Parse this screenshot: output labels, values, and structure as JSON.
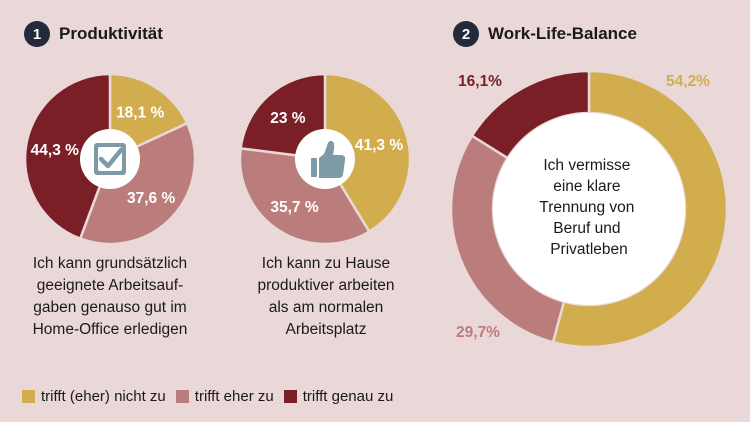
{
  "colors": {
    "gold": "#d2ad4d",
    "rose": "#bb7d7c",
    "maroon": "#7a1f26",
    "background": "#ead8d9",
    "badge": "#232a3b",
    "icon": "#7d9aa6"
  },
  "sections": [
    {
      "number": "1",
      "title": "Produktivität"
    },
    {
      "number": "2",
      "title": "Work-Life-Balance"
    }
  ],
  "chart_data": [
    {
      "type": "pie",
      "icon": "checkbox-check-icon",
      "caption": [
        "Ich kann grundsätzlich",
        "geeignete Arbeitsauf-",
        "gaben genauso gut im",
        "Home-Office erledigen"
      ],
      "slices": [
        {
          "category": "trifft (eher) nicht zu",
          "value": 18.1,
          "label": "18,1 %",
          "color": "#d2ad4d"
        },
        {
          "category": "trifft eher zu",
          "value": 37.6,
          "label": "37,6 %",
          "color": "#bb7d7c"
        },
        {
          "category": "trifft genau zu",
          "value": 44.3,
          "label": "44,3 %",
          "color": "#7a1f26"
        }
      ]
    },
    {
      "type": "pie",
      "icon": "thumbs-up-icon",
      "caption": [
        "Ich kann zu Hause",
        "produktiver arbeiten",
        "als am normalen",
        "Arbeitsplatz"
      ],
      "slices": [
        {
          "category": "trifft (eher) nicht zu",
          "value": 41.3,
          "label": "41,3 %",
          "color": "#d2ad4d"
        },
        {
          "category": "trifft eher zu",
          "value": 35.7,
          "label": "35,7 %",
          "color": "#bb7d7c"
        },
        {
          "category": "trifft genau zu",
          "value": 23,
          "label": "23 %",
          "color": "#7a1f26"
        }
      ]
    },
    {
      "type": "donut",
      "center_text": [
        "Ich vermisse",
        "eine klare",
        "Trennung von",
        "Beruf und",
        "Privatleben"
      ],
      "slices": [
        {
          "category": "trifft (eher) nicht zu",
          "value": 54.2,
          "label": "54,2%",
          "color": "#d2ad4d"
        },
        {
          "category": "trifft eher zu",
          "value": 29.7,
          "label": "29,7%",
          "color": "#bb7d7c"
        },
        {
          "category": "trifft genau zu",
          "value": 16.1,
          "label": "16,1%",
          "color": "#7a1f26"
        }
      ]
    }
  ],
  "legend": [
    {
      "label": "trifft (eher) nicht zu",
      "color": "#d2ad4d"
    },
    {
      "label": "trifft eher zu",
      "color": "#bb7d7c"
    },
    {
      "label": "trifft genau zu",
      "color": "#7a1f26"
    }
  ]
}
